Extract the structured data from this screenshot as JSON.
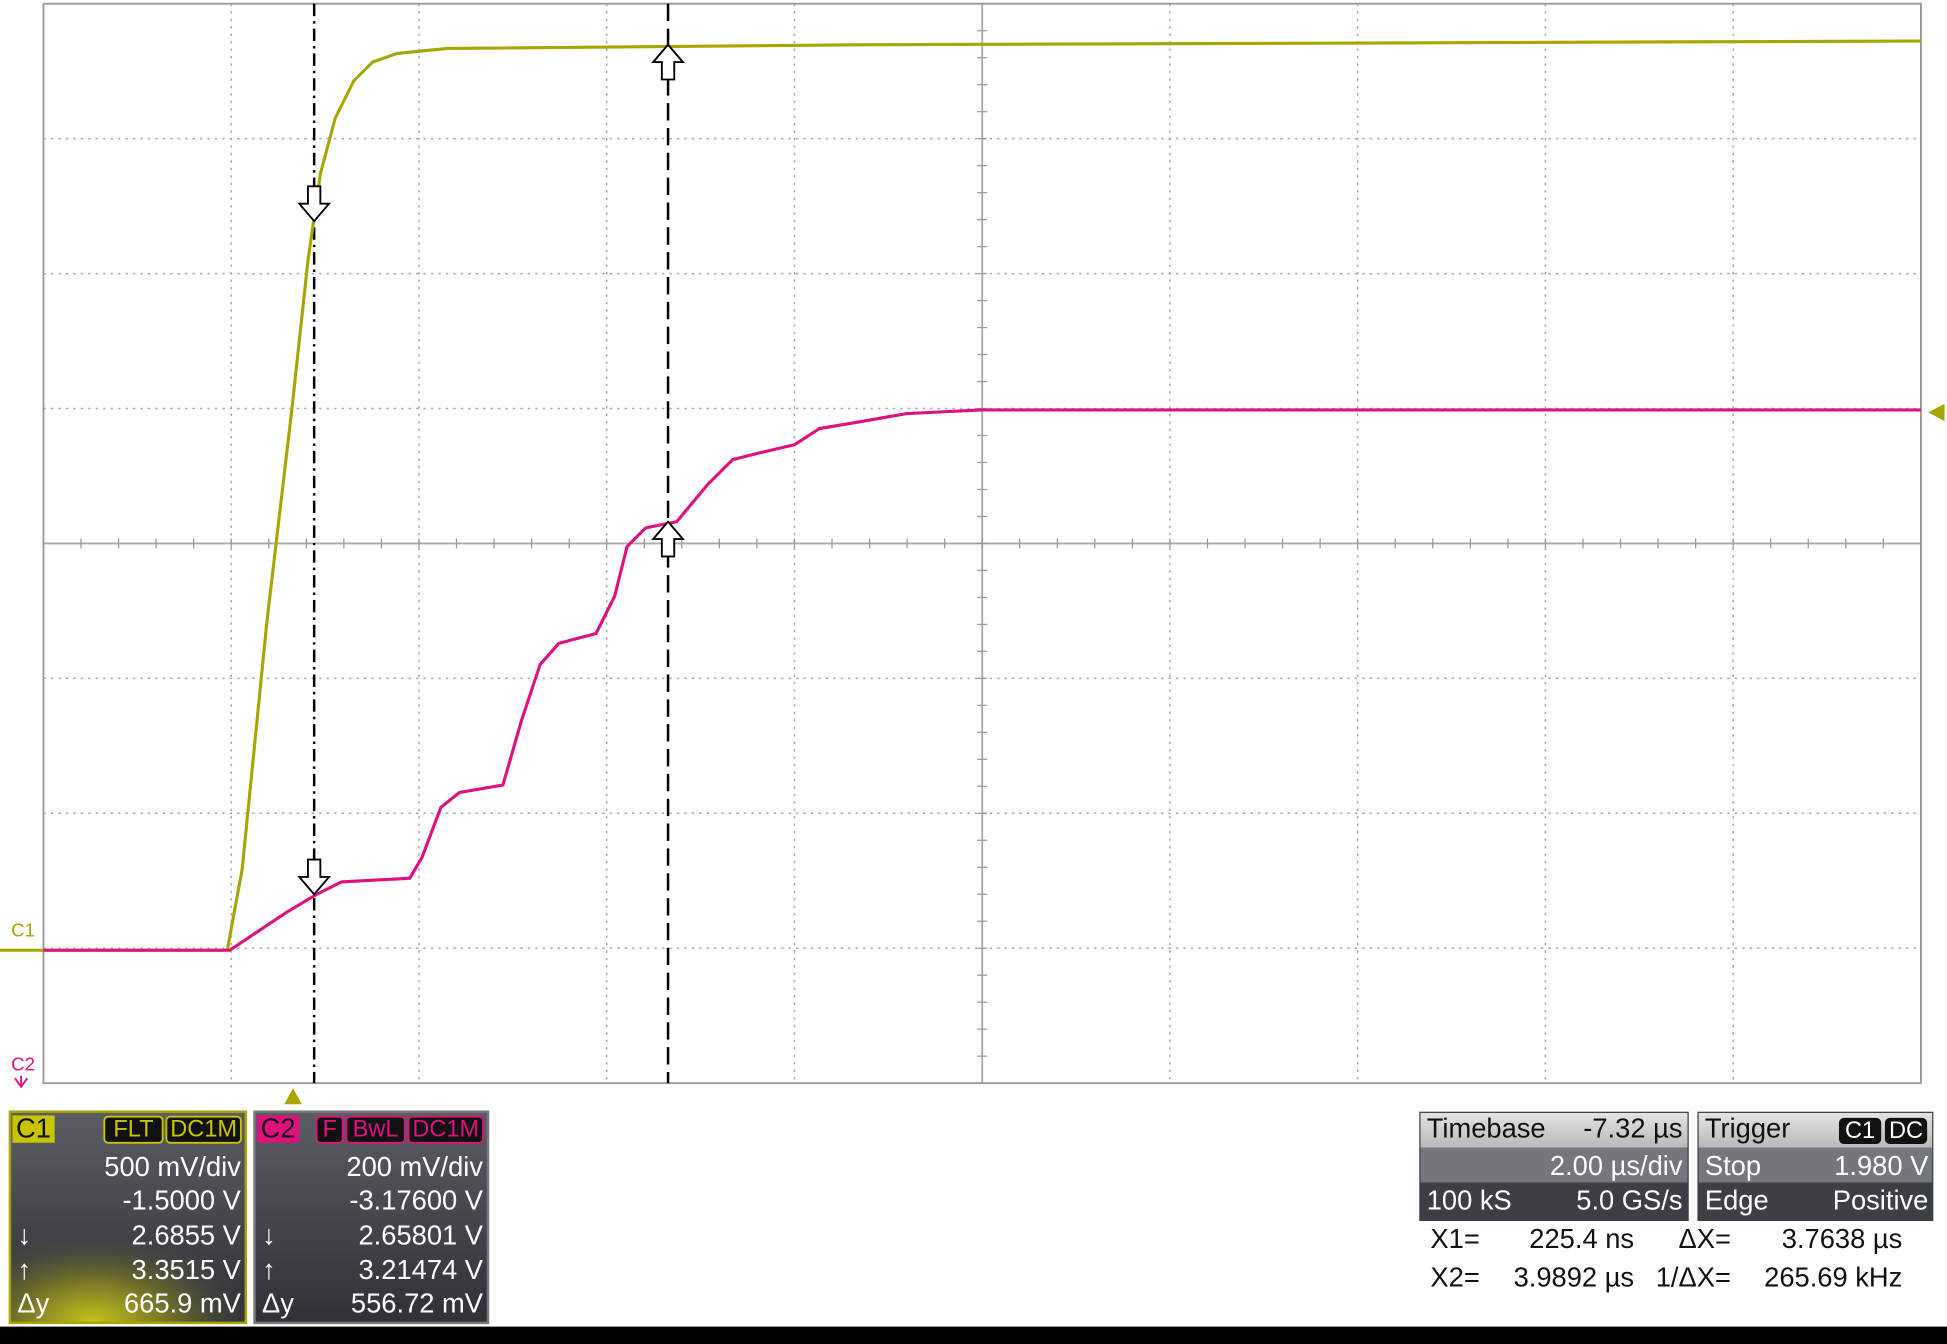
{
  "markers": {
    "c1": "C1",
    "c2": "C2"
  },
  "channels": [
    {
      "label": "C1",
      "tags": [
        "FLT",
        "DC1M"
      ],
      "scale": "500 mV/div",
      "offset": "-1.5000 V",
      "cursor1_symbol": "↓",
      "cursor1": "2.6855 V",
      "cursor2_symbol": "↑",
      "cursor2": "3.3515 V",
      "delta_label": "Δy",
      "delta": "665.9 mV"
    },
    {
      "label": "C2",
      "tags": [
        "F",
        "BwL",
        "DC1M"
      ],
      "scale": "200 mV/div",
      "offset": "-3.17600 V",
      "cursor1_symbol": "↓",
      "cursor1": "2.65801 V",
      "cursor2_symbol": "↑",
      "cursor2": "3.21474 V",
      "delta_label": "Δy",
      "delta": "556.72 mV"
    }
  ],
  "timebase": {
    "label": "Timebase",
    "delay": "-7.32 µs",
    "scale": "2.00 µs/div",
    "samples": "100 kS",
    "rate": "5.0 GS/s"
  },
  "trigger": {
    "label": "Trigger",
    "source": "C1",
    "coupling": "DC",
    "mode": "Stop",
    "level": "1.980 V",
    "type": "Edge",
    "slope": "Positive"
  },
  "cursors": {
    "x1_label": "X1=",
    "x1": "225.4 ns",
    "dx_label": "ΔX=",
    "dx": "3.7638 µs",
    "x2_label": "X2=",
    "x2": "3.9892 µs",
    "inv_label": "1/ΔX=",
    "inv": "265.69 kHz"
  }
}
